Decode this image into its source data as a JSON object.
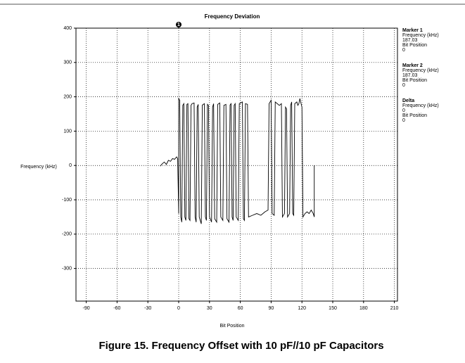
{
  "chart_data": {
    "type": "line",
    "title": "Frequency Deviation",
    "x_label": "Bit Position",
    "y_label": "Frequency (kHz)",
    "caption": "Figure 15. Frequency Offset with 10 pF//10 pF Capacitors",
    "color": "#000000",
    "grid": true,
    "xlim": [
      -100,
      213
    ],
    "ylim": [
      -395,
      400
    ],
    "xticks": [
      -90,
      -60,
      -30,
      0,
      30,
      60,
      90,
      120,
      150,
      180,
      210
    ],
    "yticks": [
      400,
      300,
      200,
      100,
      0,
      -100,
      -200,
      -300
    ],
    "x": [
      -18,
      -16,
      -14,
      -12,
      -10,
      -8,
      -6,
      -4,
      -2,
      -1,
      0,
      0,
      1,
      2,
      3,
      4,
      5,
      6,
      7,
      8,
      9,
      10,
      11,
      12,
      13,
      15,
      16,
      17,
      18,
      19,
      20,
      22,
      23,
      25,
      26,
      27,
      28,
      29,
      30,
      32,
      33,
      34,
      35,
      37,
      38,
      40,
      41,
      43,
      44,
      46,
      47,
      49,
      50,
      51,
      52,
      53,
      54,
      55,
      56,
      58,
      59,
      62,
      63,
      64,
      65,
      67,
      68,
      72,
      76,
      80,
      84,
      87,
      88,
      90,
      91,
      93,
      94,
      96,
      98,
      100,
      101,
      103,
      104,
      105,
      106,
      108,
      109,
      110,
      111,
      112,
      113,
      115,
      116,
      117,
      118,
      120,
      121,
      123,
      125,
      127,
      129,
      131,
      132,
      132
    ],
    "values": [
      -2,
      5,
      10,
      3,
      15,
      12,
      20,
      18,
      25,
      20,
      -140,
      195,
      190,
      -150,
      -165,
      175,
      180,
      -150,
      -160,
      178,
      180,
      -155,
      -160,
      175,
      180,
      182,
      -150,
      -165,
      170,
      178,
      -150,
      -170,
      176,
      180,
      -150,
      -160,
      178,
      175,
      -150,
      -165,
      170,
      180,
      -155,
      -165,
      178,
      182,
      -150,
      -160,
      175,
      178,
      -155,
      -165,
      176,
      180,
      -150,
      -160,
      175,
      180,
      -150,
      -160,
      180,
      185,
      -155,
      -160,
      180,
      178,
      -150,
      -145,
      -140,
      -145,
      -135,
      -130,
      180,
      190,
      -140,
      -145,
      185,
      180,
      175,
      180,
      -150,
      -140,
      170,
      165,
      -150,
      -140,
      175,
      185,
      -140,
      -145,
      180,
      185,
      175,
      180,
      195,
      170,
      -150,
      -140,
      -135,
      -140,
      -130,
      -140,
      -150,
      0
    ],
    "marker_flag": {
      "label": "1",
      "x": 0
    },
    "markers": [
      {
        "name": "Marker 1",
        "frequency_label": "Frequency (kHz)",
        "frequency": 187.03,
        "position_label": "Bit Position",
        "position": 0
      },
      {
        "name": "Marker 2",
        "frequency_label": "Frequency (kHz)",
        "frequency": 187.03,
        "position_label": "Bit Position",
        "position": 0
      },
      {
        "name": "Delta",
        "frequency_label": "Frequency (kHz)",
        "frequency": 0,
        "position_label": "Bit Position",
        "position": 0
      }
    ]
  }
}
